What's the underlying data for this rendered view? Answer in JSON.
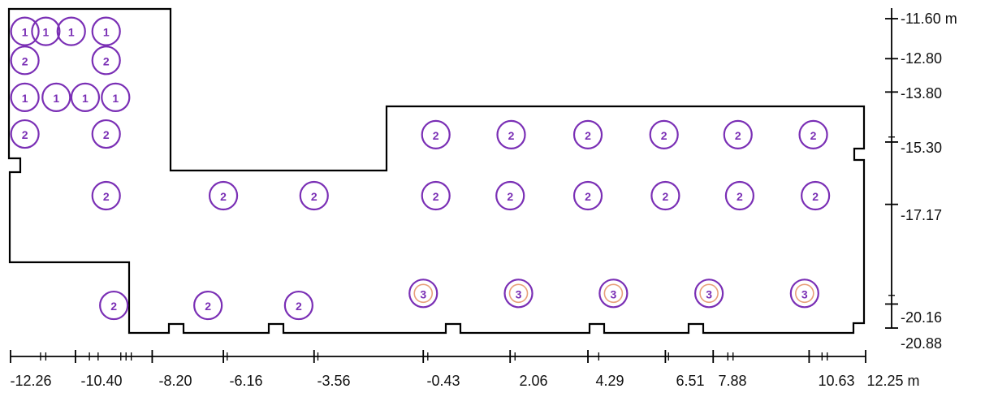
{
  "plan": {
    "outline_color": "#000000",
    "luminaire_color": "#7a2fb5",
    "type3_inner_color": "#e8a07a"
  },
  "x_axis": {
    "labels": [
      "-12.26",
      "-10.40",
      "-8.20",
      "-6.16",
      "-3.56",
      "-0.43",
      "2.06",
      "4.29",
      "6.51",
      "7.88",
      "10.63",
      "12.25 m"
    ],
    "values": [
      -12.26,
      -10.4,
      -8.2,
      -6.16,
      -3.56,
      -0.43,
      2.06,
      4.29,
      6.51,
      7.88,
      10.63,
      12.25
    ]
  },
  "y_axis": {
    "labels": [
      "-11.60 m",
      "-12.80",
      "-13.80",
      "-15.30",
      "-17.17",
      "-20.16",
      "-20.88"
    ],
    "values": [
      -11.6,
      -12.8,
      -13.8,
      -15.3,
      -17.17,
      -20.16,
      -20.88
    ]
  },
  "luminaires": [
    {
      "label": "1",
      "x": -11.85,
      "y": -11.98
    },
    {
      "label": "1",
      "x": -11.25,
      "y": -11.98
    },
    {
      "label": "1",
      "x": -10.52,
      "y": -11.98
    },
    {
      "label": "1",
      "x": -9.52,
      "y": -11.98
    },
    {
      "label": "2",
      "x": -11.85,
      "y": -12.85
    },
    {
      "label": "2",
      "x": -9.52,
      "y": -12.85
    },
    {
      "label": "1",
      "x": -11.85,
      "y": -13.96
    },
    {
      "label": "1",
      "x": -10.95,
      "y": -13.96
    },
    {
      "label": "1",
      "x": -10.12,
      "y": -13.96
    },
    {
      "label": "1",
      "x": -9.25,
      "y": -13.96
    },
    {
      "label": "2",
      "x": -11.85,
      "y": -15.06
    },
    {
      "label": "2",
      "x": -9.52,
      "y": -15.06
    },
    {
      "label": "2",
      "x": -0.07,
      "y": -15.08
    },
    {
      "label": "2",
      "x": 2.09,
      "y": -15.08
    },
    {
      "label": "2",
      "x": 4.29,
      "y": -15.08
    },
    {
      "label": "2",
      "x": 6.47,
      "y": -15.08
    },
    {
      "label": "2",
      "x": 8.59,
      "y": -15.08
    },
    {
      "label": "2",
      "x": 10.75,
      "y": -15.08
    },
    {
      "label": "2",
      "x": -9.52,
      "y": -16.91
    },
    {
      "label": "2",
      "x": -6.16,
      "y": -16.91
    },
    {
      "label": "2",
      "x": -3.56,
      "y": -16.91
    },
    {
      "label": "2",
      "x": -0.07,
      "y": -16.91
    },
    {
      "label": "2",
      "x": 2.06,
      "y": -16.91
    },
    {
      "label": "2",
      "x": 4.29,
      "y": -16.91
    },
    {
      "label": "2",
      "x": 6.51,
      "y": -16.91
    },
    {
      "label": "2",
      "x": 8.64,
      "y": -16.91
    },
    {
      "label": "2",
      "x": 10.81,
      "y": -16.91
    },
    {
      "label": "3",
      "x": -0.43,
      "y": -19.84
    },
    {
      "label": "3",
      "x": 2.3,
      "y": -19.84
    },
    {
      "label": "3",
      "x": 5.02,
      "y": -19.84
    },
    {
      "label": "3",
      "x": 7.76,
      "y": -19.84
    },
    {
      "label": "3",
      "x": 10.5,
      "y": -19.84
    },
    {
      "label": "2",
      "x": -9.3,
      "y": -20.2
    },
    {
      "label": "2",
      "x": -6.6,
      "y": -20.2
    },
    {
      "label": "2",
      "x": -4.0,
      "y": -20.2
    }
  ]
}
